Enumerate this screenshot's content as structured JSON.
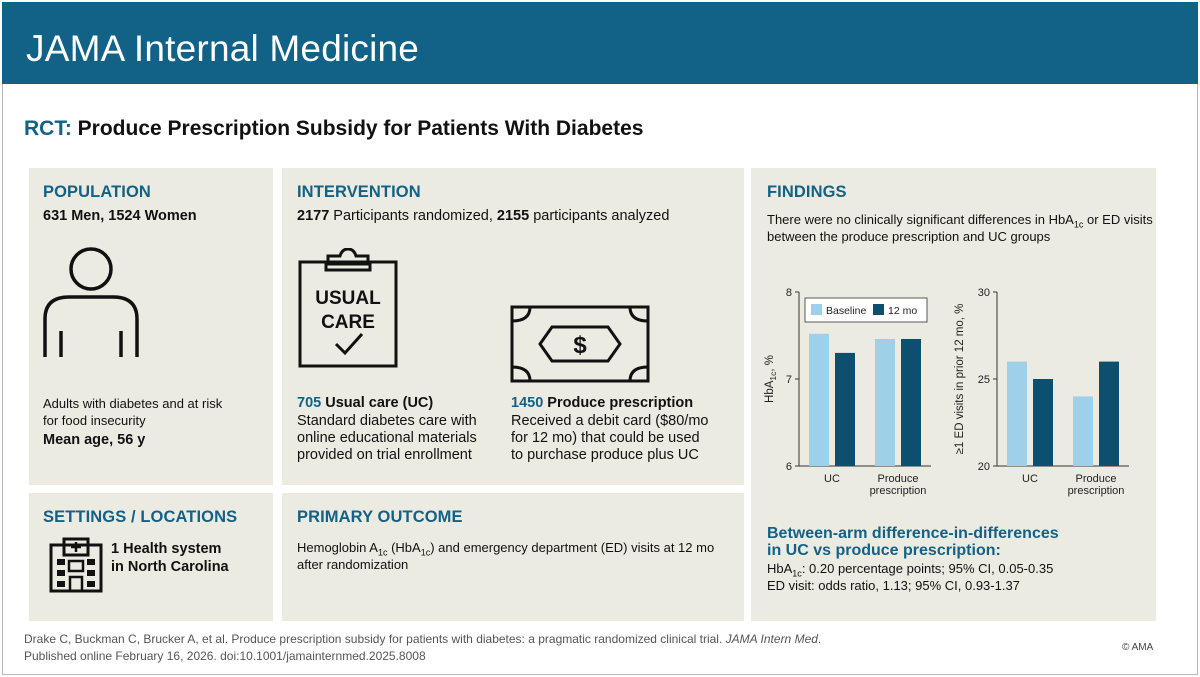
{
  "journal": "JAMA Internal Medicine",
  "title": {
    "tag": "RCT:",
    "text": "Produce Prescription Subsidy for Patients With Diabetes"
  },
  "population": {
    "heading": "POPULATION",
    "count_line": "631 Men, 1524 Women",
    "description_line1": "Adults with diabetes and at risk",
    "description_line2": "for food insecurity",
    "mean_age": "Mean age, 56 y",
    "icon": "person-icon"
  },
  "intervention": {
    "heading": "INTERVENTION",
    "randomized_n": "2177",
    "randomized_label": "Participants randomized,",
    "analyzed_n": "2155",
    "analyzed_label": "participants analyzed",
    "usual_care": {
      "icon": "clipboard-check-icon",
      "icon_text_line1": "USUAL",
      "icon_text_line2": "CARE",
      "n": "705",
      "label": "Usual care (UC)",
      "desc_line1": "Standard diabetes care with",
      "desc_line2": "online educational materials",
      "desc_line3": "provided on trial enrollment"
    },
    "produce": {
      "icon": "dollar-bill-icon",
      "n": "1450",
      "label": "Produce prescription",
      "desc_line1": "Received a debit card ($80/mo",
      "desc_line2": "for 12 mo) that could be used",
      "desc_line3": "to purchase produce plus UC"
    }
  },
  "settings": {
    "heading": "SETTINGS / LOCATIONS",
    "icon": "hospital-building-icon",
    "line1": "1 Health system",
    "line2": "in North Carolina"
  },
  "primary_outcome": {
    "heading": "PRIMARY OUTCOME",
    "line1_a": "Hemoglobin A",
    "line1_sub": "1c",
    "line1_b": " (HbA",
    "line1_sub2": "1c",
    "line1_c": ") and emergency department (ED) visits at 12 mo",
    "line2": "after randomization"
  },
  "findings": {
    "heading": "FINDINGS",
    "summary_a": "There were no clinically significant differences in HbA",
    "summary_sub": "1c",
    "summary_b": " or ED visits",
    "summary_line2": "between the produce prescription and UC groups",
    "dd_heading_line1": "Between-arm difference-in-differences",
    "dd_heading_line2": "in UC vs produce prescription:",
    "dd_hba_label": "HbA",
    "dd_hba_sub": "1c",
    "dd_hba_text": ": 0.20 percentage points; 95% CI, 0.05-0.35",
    "dd_ed_text": "ED visit: odds ratio, 1.13; 95% CI, 0.93-1.37"
  },
  "colors": {
    "brand": "#126187",
    "baseline": "#9fd0ea",
    "month12": "#0d4f6e",
    "panel": "#ecebe2"
  },
  "chart_data": [
    {
      "type": "bar",
      "categories": [
        "UC",
        "Produce\nprescription"
      ],
      "category_lines": [
        [
          "UC"
        ],
        [
          "Produce",
          "prescription"
        ]
      ],
      "series": [
        {
          "name": "Baseline",
          "values": [
            7.52,
            7.46
          ]
        },
        {
          "name": "12 mo",
          "values": [
            7.3,
            7.46
          ]
        }
      ],
      "ylabel": "HbA1c, %",
      "ylabel_main": "HbA",
      "ylabel_sub": "1c",
      "ylabel_tail": ", %",
      "ylim": [
        6,
        8
      ],
      "yticks": [
        "6",
        "7",
        "8"
      ],
      "legend": "top"
    },
    {
      "type": "bar",
      "categories": [
        "UC",
        "Produce\nprescription"
      ],
      "category_lines": [
        [
          "UC"
        ],
        [
          "Produce",
          "prescription"
        ]
      ],
      "series": [
        {
          "name": "Baseline",
          "values": [
            26,
            24
          ]
        },
        {
          "name": "12 mo",
          "values": [
            25,
            26
          ]
        }
      ],
      "ylabel": "≥1 ED visits in prior 12 mo, %",
      "ylim": [
        20,
        30
      ],
      "yticks": [
        "20",
        "25",
        "30"
      ]
    }
  ],
  "footer": {
    "citation": "Drake C, Buckman C, Brucker A, et al. Produce prescription subsidy for patients with diabetes: a pragmatic randomized clinical trial.",
    "journal_abbrev": "JAMA Intern Med",
    "published": "Published online February 16, 2026. doi:10.1001/jamainternmed.2025.8008",
    "copyright": "© AMA"
  }
}
